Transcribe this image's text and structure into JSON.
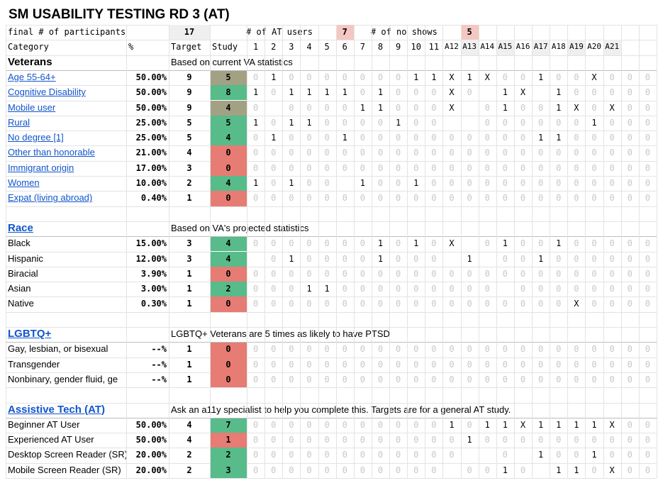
{
  "title": "SM USABILITY TESTING RD 3 (AT)",
  "summary": {
    "participants_label": "final # of participants",
    "participants_value": "17",
    "at_users_label": "# of AT users",
    "at_users_value": "7",
    "no_shows_label": "# of no shows",
    "no_shows_value": "5"
  },
  "header": {
    "category": "Category",
    "pct": "%",
    "target": "Target",
    "study": "Study",
    "participants": [
      "1",
      "2",
      "3",
      "4",
      "5",
      "6",
      "7",
      "8",
      "9",
      "10",
      "11",
      "A12",
      "A13",
      "A14",
      "A15",
      "A16",
      "A17",
      "A18",
      "A19",
      "A20",
      "A21"
    ]
  },
  "colors": {
    "green": "#57bb8a",
    "red": "#e67c73",
    "olive": "#a3a183",
    "pink": "#f4c7c3",
    "link": "#1155cc"
  },
  "sections": [
    {
      "name": "Veterans",
      "name_is_link": false,
      "note": "Based on current VA statistics",
      "rows": [
        {
          "label": "Age 55-64+",
          "link": true,
          "pct": "50.00%",
          "target": "9",
          "study": "5",
          "status": "olive",
          "cells": [
            "0",
            "1",
            "0",
            "0",
            "0",
            "0",
            "0",
            "0",
            "0",
            "1",
            "1",
            "X",
            "1",
            "X",
            "0",
            "0",
            "1",
            "0",
            "0",
            "X",
            "0",
            "0",
            "0"
          ]
        },
        {
          "label": "Cognitive Disability",
          "link": true,
          "pct": "50.00%",
          "target": "9",
          "study": "8",
          "status": "green",
          "cells": [
            "1",
            "0",
            "1",
            "1",
            "1",
            "1",
            "0",
            "1",
            "0",
            "0",
            "0",
            "X",
            "0",
            "",
            "1",
            "X",
            "",
            "1",
            "0",
            "0",
            "0",
            "0",
            "0"
          ]
        },
        {
          "label": "Mobile user",
          "link": true,
          "pct": "50.00%",
          "target": "9",
          "study": "4",
          "status": "olive",
          "cells": [
            "0",
            "",
            "0",
            "0",
            "0",
            "0",
            "1",
            "1",
            "0",
            "0",
            "0",
            "X",
            "",
            "0",
            "1",
            "0",
            "0",
            "1",
            "X",
            "0",
            "X",
            "0",
            "0"
          ]
        },
        {
          "label": "Rural",
          "link": true,
          "pct": "25.00%",
          "target": "5",
          "study": "5",
          "status": "green",
          "cells": [
            "1",
            "0",
            "1",
            "1",
            "0",
            "0",
            "0",
            "0",
            "1",
            "0",
            "0",
            "",
            "",
            "0",
            "0",
            "0",
            "0",
            "0",
            "0",
            "1",
            "0",
            "0",
            "0"
          ]
        },
        {
          "label": "No degree [1]",
          "link": true,
          "pct": "25.00%",
          "target": "5",
          "study": "4",
          "status": "green",
          "cells": [
            "0",
            "1",
            "0",
            "0",
            "0",
            "1",
            "0",
            "0",
            "0",
            "0",
            "0",
            "0",
            "0",
            "0",
            "0",
            "0",
            "1",
            "1",
            "0",
            "0",
            "0",
            "0",
            "0"
          ]
        },
        {
          "label": "Other than honorable",
          "link": true,
          "pct": "21.00%",
          "target": "4",
          "study": "0",
          "status": "red",
          "cells": [
            "0",
            "0",
            "0",
            "0",
            "0",
            "0",
            "0",
            "0",
            "0",
            "0",
            "0",
            "0",
            "0",
            "0",
            "0",
            "0",
            "0",
            "0",
            "0",
            "0",
            "0",
            "0",
            "0"
          ]
        },
        {
          "label": "Immigrant origin",
          "link": true,
          "pct": "17.00%",
          "target": "3",
          "study": "0",
          "status": "red",
          "cells": [
            "0",
            "0",
            "0",
            "0",
            "0",
            "0",
            "0",
            "0",
            "0",
            "0",
            "0",
            "0",
            "0",
            "0",
            "0",
            "0",
            "0",
            "0",
            "0",
            "0",
            "0",
            "0",
            "0"
          ]
        },
        {
          "label": "Women",
          "link": true,
          "pct": "10.00%",
          "target": "2",
          "study": "4",
          "status": "green",
          "cells": [
            "1",
            "0",
            "1",
            "0",
            "0",
            "",
            "1",
            "0",
            "0",
            "1",
            "0",
            "0",
            "0",
            "0",
            "0",
            "0",
            "0",
            "0",
            "0",
            "0",
            "0",
            "0",
            "0"
          ]
        },
        {
          "label": "Expat (living abroad)",
          "link": true,
          "pct": "0.40%",
          "target": "1",
          "study": "0",
          "status": "red",
          "cells": [
            "0",
            "0",
            "0",
            "0",
            "0",
            "0",
            "0",
            "0",
            "0",
            "0",
            "0",
            "0",
            "0",
            "0",
            "0",
            "0",
            "0",
            "0",
            "0",
            "0",
            "0",
            "0",
            "0"
          ]
        }
      ]
    },
    {
      "name": "Race",
      "name_is_link": true,
      "note": "Based on VA's projected statistics",
      "rows": [
        {
          "label": "Black",
          "link": false,
          "pct": "15.00%",
          "target": "3",
          "study": "4",
          "status": "green",
          "cells": [
            "0",
            "0",
            "0",
            "0",
            "0",
            "0",
            "0",
            "1",
            "0",
            "1",
            "0",
            "X",
            "",
            "0",
            "1",
            "0",
            "0",
            "1",
            "0",
            "0",
            "0",
            "0",
            "0"
          ]
        },
        {
          "label": "Hispanic",
          "link": false,
          "pct": "12.00%",
          "target": "3",
          "study": "4",
          "status": "green",
          "cells": [
            "",
            "0",
            "1",
            "0",
            "0",
            "0",
            "0",
            "1",
            "0",
            "0",
            "0",
            "",
            "1",
            "",
            "0",
            "0",
            "1",
            "0",
            "0",
            "0",
            "0",
            "0",
            "0"
          ]
        },
        {
          "label": "Biracial",
          "link": false,
          "pct": "3.90%",
          "target": "1",
          "study": "0",
          "status": "red",
          "cells": [
            "0",
            "0",
            "0",
            "0",
            "0",
            "0",
            "0",
            "0",
            "0",
            "0",
            "0",
            "0",
            "0",
            "0",
            "0",
            "0",
            "0",
            "0",
            "0",
            "0",
            "0",
            "0",
            "0"
          ]
        },
        {
          "label": "Asian",
          "link": false,
          "pct": "3.00%",
          "target": "1",
          "study": "2",
          "status": "green",
          "cells": [
            "0",
            "0",
            "0",
            "1",
            "1",
            "0",
            "0",
            "0",
            "0",
            "0",
            "0",
            "0",
            "0",
            "0",
            "",
            "0",
            "0",
            "0",
            "0",
            "0",
            "0",
            "0",
            "0"
          ]
        },
        {
          "label": "Native",
          "link": false,
          "pct": "0.30%",
          "target": "1",
          "study": "0",
          "status": "red",
          "cells": [
            "0",
            "0",
            "0",
            "0",
            "0",
            "0",
            "0",
            "0",
            "0",
            "0",
            "0",
            "0",
            "0",
            "0",
            "0",
            "0",
            "0",
            "0",
            "X",
            "0",
            "0",
            "0",
            "0"
          ]
        }
      ]
    },
    {
      "name": "LGBTQ+",
      "name_is_link": true,
      "note": "LGBTQ+ Veterans are 5 times as likely to have PTSD",
      "rows": [
        {
          "label": "Gay, lesbian, or bisexual",
          "link": false,
          "pct": "--%",
          "target": "1",
          "study": "0",
          "status": "red",
          "cells": [
            "0",
            "0",
            "0",
            "0",
            "0",
            "0",
            "0",
            "0",
            "0",
            "0",
            "0",
            "0",
            "0",
            "0",
            "0",
            "0",
            "0",
            "0",
            "0",
            "0",
            "0",
            "0",
            "0"
          ]
        },
        {
          "label": "Transgender",
          "link": false,
          "pct": "--%",
          "target": "1",
          "study": "0",
          "status": "red",
          "cells": [
            "0",
            "0",
            "0",
            "0",
            "0",
            "0",
            "0",
            "0",
            "0",
            "0",
            "0",
            "0",
            "0",
            "0",
            "0",
            "0",
            "0",
            "0",
            "0",
            "0",
            "0",
            "0",
            "0"
          ]
        },
        {
          "label": "Nonbinary, gender fluid, ge",
          "link": false,
          "pct": "--%",
          "target": "1",
          "study": "0",
          "status": "red",
          "cells": [
            "0",
            "0",
            "0",
            "0",
            "0",
            "0",
            "0",
            "0",
            "0",
            "0",
            "0",
            "0",
            "0",
            "0",
            "0",
            "0",
            "0",
            "0",
            "0",
            "0",
            "0",
            "0",
            "0"
          ]
        }
      ]
    },
    {
      "name": "Assistive Tech (AT)",
      "name_is_link": true,
      "note": "Ask an a11y specialist to help you complete this. Targets are for a general AT study.",
      "rows": [
        {
          "label": "Beginner AT User",
          "link": false,
          "pct": "50.00%",
          "target": "4",
          "study": "7",
          "status": "green",
          "cells": [
            "0",
            "0",
            "0",
            "0",
            "0",
            "0",
            "0",
            "0",
            "0",
            "0",
            "0",
            "1",
            "0",
            "1",
            "1",
            "X",
            "1",
            "1",
            "1",
            "1",
            "X",
            "0",
            "0"
          ]
        },
        {
          "label": "Experienced AT User",
          "link": false,
          "pct": "50.00%",
          "target": "4",
          "study": "1",
          "status": "red",
          "cells": [
            "0",
            "0",
            "0",
            "0",
            "0",
            "0",
            "0",
            "0",
            "0",
            "0",
            "0",
            "0",
            "1",
            "0",
            "0",
            "0",
            "0",
            "0",
            "0",
            "0",
            "0",
            "0",
            "0"
          ]
        },
        {
          "label": "Desktop Screen Reader (SR)",
          "link": false,
          "pct": "20.00%",
          "target": "2",
          "study": "2",
          "status": "green",
          "cells": [
            "0",
            "0",
            "0",
            "0",
            "0",
            "0",
            "0",
            "0",
            "0",
            "0",
            "0",
            "0",
            "",
            "",
            "0",
            "",
            "1",
            "0",
            "0",
            "1",
            "0",
            "0",
            "0"
          ]
        },
        {
          "label": "Mobile Screen Reader (SR)",
          "link": false,
          "pct": "20.00%",
          "target": "2",
          "study": "3",
          "status": "green",
          "cells": [
            "0",
            "0",
            "0",
            "0",
            "0",
            "0",
            "0",
            "0",
            "0",
            "0",
            "0",
            "",
            "0",
            "0",
            "1",
            "0",
            "",
            "1",
            "1",
            "0",
            "X",
            "0",
            "0"
          ]
        }
      ]
    }
  ]
}
